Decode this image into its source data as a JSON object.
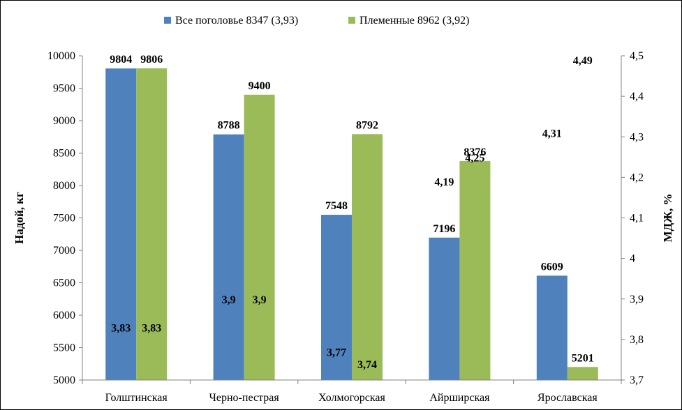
{
  "chart_data": {
    "type": "bar",
    "categories": [
      "Голштинская",
      "Черно-пестрая",
      "Холмогорская",
      "Айрширская",
      "Ярославская"
    ],
    "series": [
      {
        "name": "Все поголовье 8347  (3,93)",
        "color": "#4F81BD",
        "values": [
          9804,
          8788,
          7548,
          7196,
          6609
        ],
        "labels": [
          "9804",
          "8788",
          "7548",
          "7196",
          "6609"
        ],
        "fat": [
          3.83,
          3.9,
          3.77,
          4.19,
          4.31
        ],
        "fat_labels": [
          "3,83",
          "3,9",
          "3,77",
          "4,19",
          "4,31"
        ]
      },
      {
        "name": "Племенные 8962  (3,92)",
        "color": "#9BBB59",
        "values": [
          9806,
          9400,
          8792,
          8376,
          5201
        ],
        "labels": [
          "9806",
          "9400",
          "8792",
          "8376",
          "5201"
        ],
        "fat": [
          3.83,
          3.9,
          3.74,
          4.25,
          4.49
        ],
        "fat_labels": [
          "3,83",
          "3,9",
          "3,74",
          "4,25",
          "4,49"
        ]
      }
    ],
    "ylabel": "Надой,  кг",
    "y2label": "МДЖ,  %",
    "ylim": [
      5000,
      10000
    ],
    "y2lim": [
      3.7,
      4.5
    ],
    "yticks": [
      "5000",
      "5500",
      "6000",
      "6500",
      "7000",
      "7500",
      "8000",
      "8500",
      "9000",
      "9500",
      "10000"
    ],
    "y2ticks": [
      "3,7",
      "3,8",
      "3,9",
      "4",
      "4,1",
      "4,2",
      "4,3",
      "4,4",
      "4,5"
    ],
    "grid": false,
    "legend_position": "top"
  }
}
